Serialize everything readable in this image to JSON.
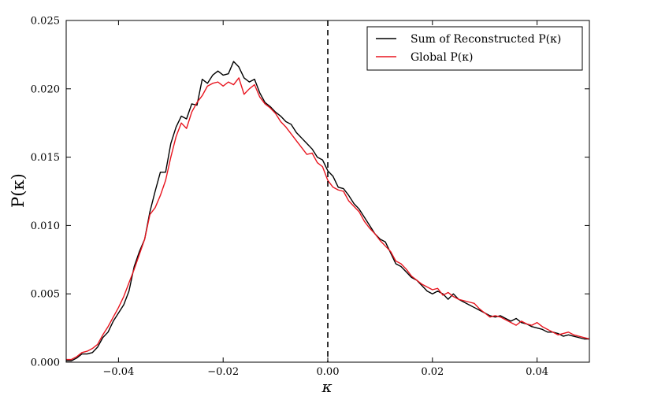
{
  "chart_data": {
    "type": "line",
    "xlabel": "κ",
    "ylabel": "P(κ)",
    "xlim": [
      -0.05,
      0.05
    ],
    "ylim": [
      0,
      0.025
    ],
    "xticks": [
      -0.04,
      -0.02,
      0.0,
      0.02,
      0.04
    ],
    "xtick_labels": [
      "−0.04",
      "−0.02",
      "0.00",
      "0.02",
      "0.04"
    ],
    "yticks": [
      0.0,
      0.005,
      0.01,
      0.015,
      0.02,
      0.025
    ],
    "ytick_labels": [
      "0.000",
      "0.005",
      "0.010",
      "0.015",
      "0.020",
      "0.025"
    ],
    "grid": false,
    "legend_position": "top-right",
    "vline": {
      "x": 0.0,
      "style": "dashed",
      "color": "#000000"
    },
    "series": [
      {
        "name": "Sum of Reconstructed P(κ)",
        "color": "#000000",
        "points": [
          [
            -0.05,
            0.0001
          ],
          [
            -0.049,
            0.0001
          ],
          [
            -0.048,
            0.0003
          ],
          [
            -0.047,
            0.0006
          ],
          [
            -0.046,
            0.0006
          ],
          [
            -0.045,
            0.0007
          ],
          [
            -0.044,
            0.0011
          ],
          [
            -0.043,
            0.0018
          ],
          [
            -0.042,
            0.0022
          ],
          [
            -0.041,
            0.003
          ],
          [
            -0.04,
            0.0036
          ],
          [
            -0.039,
            0.0042
          ],
          [
            -0.038,
            0.0052
          ],
          [
            -0.037,
            0.007
          ],
          [
            -0.036,
            0.0081
          ],
          [
            -0.035,
            0.009
          ],
          [
            -0.034,
            0.011
          ],
          [
            -0.033,
            0.0125
          ],
          [
            -0.032,
            0.0139
          ],
          [
            -0.031,
            0.0139
          ],
          [
            -0.03,
            0.016
          ],
          [
            -0.029,
            0.0172
          ],
          [
            -0.028,
            0.018
          ],
          [
            -0.027,
            0.0178
          ],
          [
            -0.026,
            0.0189
          ],
          [
            -0.025,
            0.0188
          ],
          [
            -0.024,
            0.0207
          ],
          [
            -0.023,
            0.0204
          ],
          [
            -0.022,
            0.021
          ],
          [
            -0.021,
            0.0213
          ],
          [
            -0.02,
            0.021
          ],
          [
            -0.019,
            0.0211
          ],
          [
            -0.018,
            0.022
          ],
          [
            -0.017,
            0.0216
          ],
          [
            -0.016,
            0.0208
          ],
          [
            -0.015,
            0.0205
          ],
          [
            -0.014,
            0.0207
          ],
          [
            -0.013,
            0.0197
          ],
          [
            -0.012,
            0.019
          ],
          [
            -0.011,
            0.0187
          ],
          [
            -0.01,
            0.0183
          ],
          [
            -0.009,
            0.018
          ],
          [
            -0.008,
            0.0176
          ],
          [
            -0.007,
            0.0174
          ],
          [
            -0.006,
            0.0168
          ],
          [
            -0.005,
            0.0164
          ],
          [
            -0.004,
            0.016
          ],
          [
            -0.003,
            0.0156
          ],
          [
            -0.002,
            0.015
          ],
          [
            -0.001,
            0.0148
          ],
          [
            0.0,
            0.014
          ],
          [
            0.001,
            0.0136
          ],
          [
            0.002,
            0.0128
          ],
          [
            0.003,
            0.0127
          ],
          [
            0.004,
            0.0122
          ],
          [
            0.005,
            0.0116
          ],
          [
            0.006,
            0.0112
          ],
          [
            0.007,
            0.0106
          ],
          [
            0.008,
            0.01
          ],
          [
            0.009,
            0.0094
          ],
          [
            0.01,
            0.009
          ],
          [
            0.011,
            0.0088
          ],
          [
            0.012,
            0.008
          ],
          [
            0.013,
            0.0072
          ],
          [
            0.014,
            0.007
          ],
          [
            0.015,
            0.0066
          ],
          [
            0.016,
            0.0062
          ],
          [
            0.017,
            0.006
          ],
          [
            0.018,
            0.0056
          ],
          [
            0.019,
            0.0052
          ],
          [
            0.02,
            0.005
          ],
          [
            0.021,
            0.0052
          ],
          [
            0.022,
            0.005
          ],
          [
            0.023,
            0.0046
          ],
          [
            0.024,
            0.005
          ],
          [
            0.025,
            0.0046
          ],
          [
            0.026,
            0.0044
          ],
          [
            0.027,
            0.0042
          ],
          [
            0.028,
            0.004
          ],
          [
            0.029,
            0.0038
          ],
          [
            0.03,
            0.0036
          ],
          [
            0.031,
            0.0034
          ],
          [
            0.032,
            0.0033
          ],
          [
            0.033,
            0.0034
          ],
          [
            0.034,
            0.0032
          ],
          [
            0.035,
            0.003
          ],
          [
            0.036,
            0.0032
          ],
          [
            0.037,
            0.0029
          ],
          [
            0.038,
            0.0028
          ],
          [
            0.039,
            0.0026
          ],
          [
            0.04,
            0.0025
          ],
          [
            0.041,
            0.0024
          ],
          [
            0.042,
            0.0022
          ],
          [
            0.043,
            0.0022
          ],
          [
            0.044,
            0.0021
          ],
          [
            0.045,
            0.0019
          ],
          [
            0.046,
            0.002
          ],
          [
            0.047,
            0.0019
          ],
          [
            0.048,
            0.0018
          ],
          [
            0.049,
            0.0017
          ],
          [
            0.05,
            0.0017
          ]
        ]
      },
      {
        "name": "Global P(κ)",
        "color": "#e8141e",
        "points": [
          [
            -0.05,
            0.0002
          ],
          [
            -0.049,
            0.0002
          ],
          [
            -0.048,
            0.0004
          ],
          [
            -0.047,
            0.0007
          ],
          [
            -0.046,
            0.0008
          ],
          [
            -0.045,
            0.001
          ],
          [
            -0.044,
            0.0013
          ],
          [
            -0.043,
            0.002
          ],
          [
            -0.042,
            0.0026
          ],
          [
            -0.041,
            0.0033
          ],
          [
            -0.04,
            0.004
          ],
          [
            -0.039,
            0.0048
          ],
          [
            -0.038,
            0.0058
          ],
          [
            -0.037,
            0.0068
          ],
          [
            -0.036,
            0.0079
          ],
          [
            -0.035,
            0.009
          ],
          [
            -0.034,
            0.0108
          ],
          [
            -0.033,
            0.0113
          ],
          [
            -0.032,
            0.0122
          ],
          [
            -0.031,
            0.0133
          ],
          [
            -0.03,
            0.015
          ],
          [
            -0.029,
            0.0165
          ],
          [
            -0.028,
            0.0175
          ],
          [
            -0.027,
            0.0171
          ],
          [
            -0.026,
            0.0183
          ],
          [
            -0.025,
            0.019
          ],
          [
            -0.024,
            0.0195
          ],
          [
            -0.023,
            0.0202
          ],
          [
            -0.022,
            0.0204
          ],
          [
            -0.021,
            0.0205
          ],
          [
            -0.02,
            0.0202
          ],
          [
            -0.019,
            0.0205
          ],
          [
            -0.018,
            0.0203
          ],
          [
            -0.017,
            0.0208
          ],
          [
            -0.016,
            0.0196
          ],
          [
            -0.015,
            0.02
          ],
          [
            -0.014,
            0.0203
          ],
          [
            -0.013,
            0.0194
          ],
          [
            -0.012,
            0.0189
          ],
          [
            -0.011,
            0.0186
          ],
          [
            -0.01,
            0.0182
          ],
          [
            -0.009,
            0.0176
          ],
          [
            -0.008,
            0.0172
          ],
          [
            -0.007,
            0.0167
          ],
          [
            -0.006,
            0.0162
          ],
          [
            -0.005,
            0.0157
          ],
          [
            -0.004,
            0.0152
          ],
          [
            -0.003,
            0.0153
          ],
          [
            -0.002,
            0.0146
          ],
          [
            -0.001,
            0.0143
          ],
          [
            0.0,
            0.0133
          ],
          [
            0.001,
            0.0128
          ],
          [
            0.002,
            0.0126
          ],
          [
            0.003,
            0.0125
          ],
          [
            0.004,
            0.0118
          ],
          [
            0.005,
            0.0114
          ],
          [
            0.006,
            0.011
          ],
          [
            0.007,
            0.0103
          ],
          [
            0.008,
            0.0098
          ],
          [
            0.009,
            0.0094
          ],
          [
            0.01,
            0.0089
          ],
          [
            0.011,
            0.0085
          ],
          [
            0.012,
            0.0081
          ],
          [
            0.013,
            0.0074
          ],
          [
            0.014,
            0.0072
          ],
          [
            0.015,
            0.0068
          ],
          [
            0.016,
            0.0063
          ],
          [
            0.017,
            0.006
          ],
          [
            0.018,
            0.0057
          ],
          [
            0.019,
            0.0055
          ],
          [
            0.02,
            0.0053
          ],
          [
            0.021,
            0.0054
          ],
          [
            0.022,
            0.0049
          ],
          [
            0.023,
            0.0051
          ],
          [
            0.024,
            0.0048
          ],
          [
            0.025,
            0.0046
          ],
          [
            0.026,
            0.0045
          ],
          [
            0.027,
            0.0044
          ],
          [
            0.028,
            0.0043
          ],
          [
            0.029,
            0.0039
          ],
          [
            0.03,
            0.0036
          ],
          [
            0.031,
            0.0033
          ],
          [
            0.032,
            0.0034
          ],
          [
            0.033,
            0.0033
          ],
          [
            0.034,
            0.0031
          ],
          [
            0.035,
            0.0029
          ],
          [
            0.036,
            0.0027
          ],
          [
            0.037,
            0.003
          ],
          [
            0.038,
            0.0028
          ],
          [
            0.039,
            0.0027
          ],
          [
            0.04,
            0.0029
          ],
          [
            0.041,
            0.0026
          ],
          [
            0.042,
            0.0024
          ],
          [
            0.043,
            0.0022
          ],
          [
            0.044,
            0.002
          ],
          [
            0.045,
            0.0021
          ],
          [
            0.046,
            0.0022
          ],
          [
            0.047,
            0.002
          ],
          [
            0.048,
            0.0019
          ],
          [
            0.049,
            0.0018
          ],
          [
            0.05,
            0.0017
          ]
        ]
      }
    ]
  }
}
